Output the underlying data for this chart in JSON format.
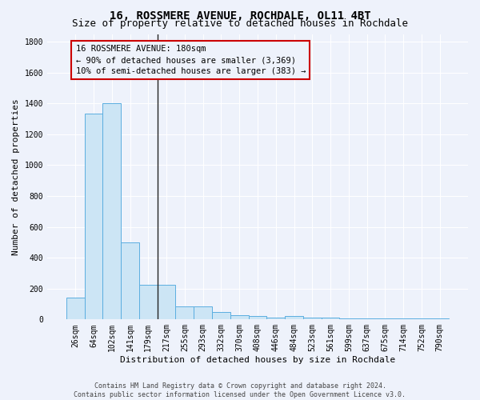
{
  "title": "16, ROSSMERE AVENUE, ROCHDALE, OL11 4BT",
  "subtitle": "Size of property relative to detached houses in Rochdale",
  "xlabel": "Distribution of detached houses by size in Rochdale",
  "ylabel": "Number of detached properties",
  "footer_line1": "Contains HM Land Registry data © Crown copyright and database right 2024.",
  "footer_line2": "Contains public sector information licensed under the Open Government Licence v3.0.",
  "categories": [
    "26sqm",
    "64sqm",
    "102sqm",
    "141sqm",
    "179sqm",
    "217sqm",
    "255sqm",
    "293sqm",
    "332sqm",
    "370sqm",
    "408sqm",
    "446sqm",
    "484sqm",
    "523sqm",
    "561sqm",
    "599sqm",
    "637sqm",
    "675sqm",
    "714sqm",
    "752sqm",
    "790sqm"
  ],
  "values": [
    140,
    1335,
    1400,
    500,
    225,
    225,
    85,
    85,
    50,
    30,
    20,
    10,
    20,
    10,
    10,
    5,
    5,
    5,
    5,
    5,
    5
  ],
  "bar_color": "#cce5f5",
  "bar_edge_color": "#5baee0",
  "vline_x": 4.5,
  "vline_color": "#222222",
  "annotation_text": "16 ROSSMERE AVENUE: 180sqm\n← 90% of detached houses are smaller (3,369)\n10% of semi-detached houses are larger (383) →",
  "annotation_box_color": "#cc0000",
  "ylim": [
    0,
    1850
  ],
  "yticks": [
    0,
    200,
    400,
    600,
    800,
    1000,
    1200,
    1400,
    1600,
    1800
  ],
  "bg_color": "#eef2fb",
  "grid_color": "#ffffff",
  "title_fontsize": 10,
  "subtitle_fontsize": 9,
  "axis_label_fontsize": 8,
  "tick_fontsize": 7,
  "annotation_fontsize": 7.5,
  "footer_fontsize": 6
}
